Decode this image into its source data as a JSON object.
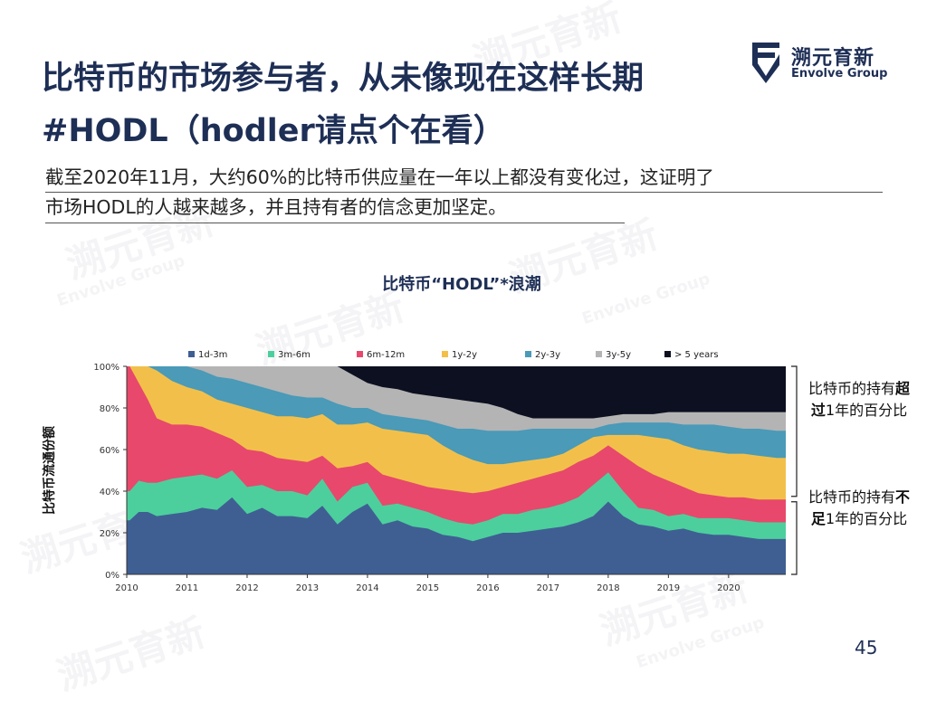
{
  "slide": {
    "title": "比特币的市场参与者，从未像现在这样长期#HODL（hodler请点个在看）",
    "subtitle_line1": "截至2020年11月，大约60%的比特币供应量在一年以上都没有变化过，这证明了",
    "subtitle_line2": "市场HODL的人越来越多，并且持有者的信念更加坚定。",
    "page_number": "45"
  },
  "logo": {
    "name_cn": "溯元育新",
    "name_en": "Envolve Group",
    "accent_color": "#1e2f56"
  },
  "annotations": {
    "over_prefix": "比特币的持有",
    "over_emph": "超过",
    "over_suffix": "1年的百分比",
    "under_prefix": "比特币的持有",
    "under_emph": "不足",
    "under_suffix": "1年的百分比"
  },
  "chart_data": {
    "type": "area",
    "stacked": true,
    "title": "比特币“HODL”*浪潮",
    "ylabel": "比特币流通份额",
    "xlabel": "",
    "ylim": [
      0,
      100
    ],
    "yticks": [
      "0%",
      "20%",
      "40%",
      "60%",
      "80%",
      "100%"
    ],
    "xticks": [
      "2010",
      "2011",
      "2012",
      "2013",
      "2014",
      "2015",
      "2016",
      "2017",
      "2018",
      "2019",
      "2020"
    ],
    "legend_position": "top",
    "grid": false,
    "x": [
      2010.05,
      2010.2,
      2010.35,
      2010.5,
      2010.75,
      2011.0,
      2011.25,
      2011.5,
      2011.75,
      2012.0,
      2012.25,
      2012.5,
      2012.75,
      2013.0,
      2013.25,
      2013.5,
      2013.75,
      2014.0,
      2014.25,
      2014.5,
      2014.75,
      2015.0,
      2015.25,
      2015.5,
      2015.75,
      2016.0,
      2016.25,
      2016.5,
      2016.75,
      2017.0,
      2017.25,
      2017.5,
      2017.75,
      2018.0,
      2018.25,
      2018.5,
      2018.75,
      2019.0,
      2019.25,
      2019.5,
      2019.75,
      2020.0,
      2020.25,
      2020.5,
      2020.8
    ],
    "series": [
      {
        "name": "1d-3m",
        "color": "#3f5f93",
        "cumulative_top": [
          26,
          30,
          30,
          28,
          29,
          30,
          32,
          31,
          37,
          29,
          32,
          28,
          28,
          27,
          33,
          24,
          30,
          34,
          24,
          26,
          23,
          22,
          19,
          18,
          16,
          18,
          20,
          20,
          21,
          22,
          23,
          25,
          28,
          35,
          28,
          24,
          23,
          21,
          22,
          20,
          19,
          19,
          18,
          17,
          17
        ]
      },
      {
        "name": "3m-6m",
        "color": "#4ccf9d",
        "cumulative_top": [
          40,
          45,
          44,
          44,
          46,
          47,
          48,
          46,
          50,
          42,
          43,
          40,
          40,
          38,
          46,
          35,
          42,
          44,
          33,
          34,
          32,
          30,
          27,
          25,
          24,
          26,
          29,
          29,
          31,
          32,
          34,
          37,
          43,
          49,
          40,
          32,
          31,
          28,
          29,
          27,
          27,
          27,
          26,
          25,
          25
        ]
      },
      {
        "name": "6m-12m",
        "color": "#e8486b",
        "cumulative_top": [
          100,
          92,
          84,
          75,
          72,
          72,
          71,
          68,
          65,
          60,
          59,
          56,
          55,
          54,
          57,
          51,
          52,
          54,
          48,
          46,
          44,
          42,
          41,
          40,
          39,
          40,
          42,
          44,
          46,
          48,
          50,
          54,
          57,
          62,
          57,
          52,
          48,
          45,
          42,
          39,
          38,
          37,
          37,
          36,
          36
        ]
      },
      {
        "name": "1y-2y",
        "color": "#f2c04a",
        "cumulative_top": [
          100,
          100,
          100,
          98,
          93,
          90,
          88,
          84,
          82,
          80,
          78,
          76,
          76,
          75,
          77,
          72,
          72,
          73,
          70,
          69,
          68,
          67,
          62,
          58,
          55,
          53,
          53,
          54,
          55,
          56,
          58,
          62,
          66,
          67,
          67,
          67,
          66,
          65,
          62,
          60,
          59,
          58,
          58,
          57,
          56
        ]
      },
      {
        "name": "2y-3y",
        "color": "#4a9ab8",
        "cumulative_top": [
          100,
          100,
          100,
          100,
          100,
          100,
          98,
          95,
          94,
          92,
          90,
          88,
          86,
          85,
          85,
          82,
          80,
          80,
          77,
          76,
          75,
          74,
          72,
          70,
          70,
          69,
          69,
          69,
          70,
          70,
          70,
          70,
          70,
          72,
          73,
          73,
          73,
          73,
          72,
          72,
          72,
          71,
          70,
          70,
          69
        ]
      },
      {
        "name": "3y-5y",
        "color": "#b4b4b4",
        "cumulative_top": [
          100,
          100,
          100,
          100,
          100,
          100,
          100,
          100,
          100,
          100,
          100,
          100,
          100,
          100,
          100,
          100,
          96,
          92,
          90,
          89,
          87,
          86,
          85,
          84,
          83,
          82,
          80,
          77,
          75,
          75,
          75,
          75,
          75,
          76,
          77,
          77,
          77,
          78,
          78,
          78,
          78,
          78,
          78,
          78,
          78
        ]
      },
      {
        "name": "> 5 years",
        "color": "#0c1020",
        "cumulative_top": [
          100,
          100,
          100,
          100,
          100,
          100,
          100,
          100,
          100,
          100,
          100,
          100,
          100,
          100,
          100,
          100,
          100,
          100,
          100,
          100,
          100,
          100,
          100,
          100,
          100,
          100,
          100,
          100,
          100,
          100,
          100,
          100,
          100,
          100,
          100,
          100,
          100,
          100,
          100,
          100,
          100,
          100,
          100,
          100,
          100
        ]
      }
    ]
  }
}
